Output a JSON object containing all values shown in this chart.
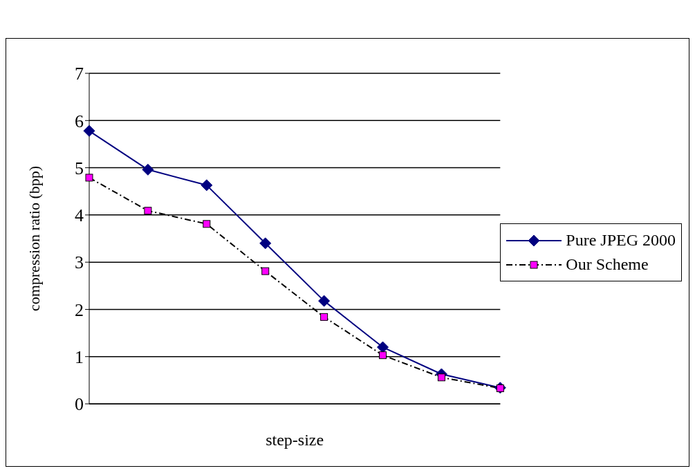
{
  "chart_data": {
    "type": "line",
    "xlabel": "step-size",
    "ylabel": "compression ratio (bpp)",
    "categories": [
      null,
      null,
      null,
      null,
      null,
      null,
      null,
      null
    ],
    "series": [
      {
        "name": "Pure JPEG 2000",
        "color": "#000080",
        "marker": "diamond",
        "line_style": "solid",
        "values": [
          5.78,
          4.96,
          4.63,
          3.4,
          2.18,
          1.2,
          0.63,
          0.34
        ]
      },
      {
        "name": "Our Scheme",
        "color": "#ff00ff",
        "marker": "square",
        "line_style": "dashed",
        "values": [
          4.79,
          4.09,
          3.81,
          2.81,
          1.84,
          1.03,
          0.56,
          0.33
        ]
      }
    ],
    "ylim": [
      0,
      7
    ],
    "yticks": [
      0,
      1,
      2,
      3,
      4,
      5,
      6,
      7
    ],
    "grid": "y",
    "legend": "right"
  }
}
